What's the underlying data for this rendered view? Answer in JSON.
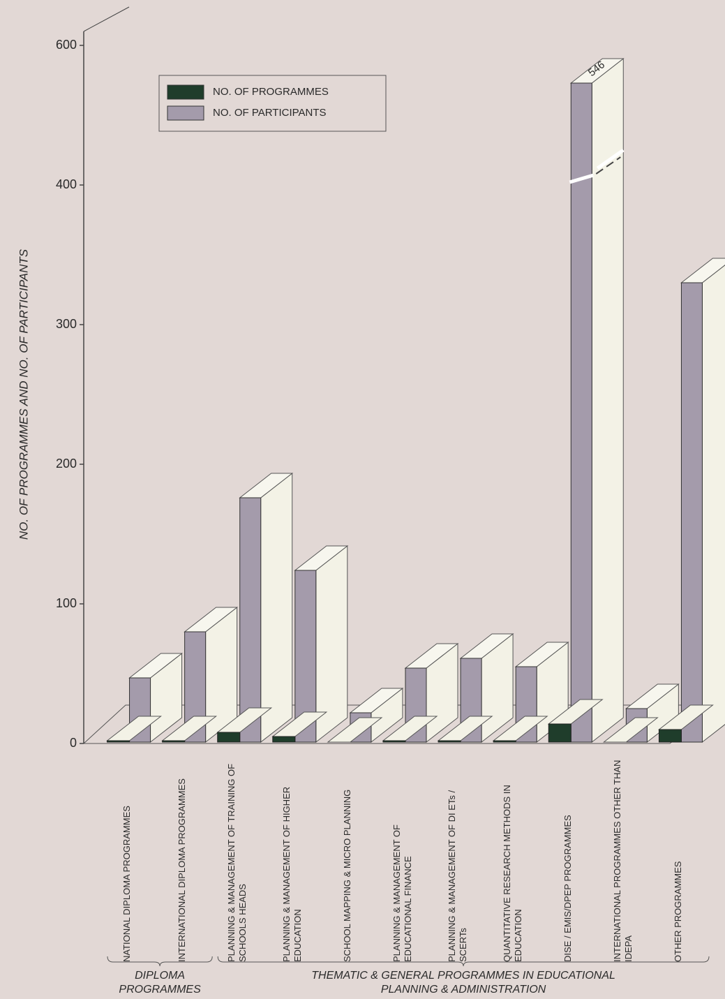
{
  "chart_data": {
    "type": "bar",
    "y_label": "NO. OF PROGRAMMES AND NO. OF PARTICIPANTS",
    "categories": [
      "NATIONAL DIPLOMA PROGRAMMES",
      "INTERNATIONAL DIPLOMA PROGRAMMES",
      "PLANNING & MANAGEMENT OF TRAINING OF SCHOOLS HEADS",
      "PLANNING & MANAGEMENT OF HIGHER EDUCATION",
      "SCHOOL MAPPING & MICRO PLANNING",
      "PLANNING & MANAGEMENT OF EDUCATIONAL FINANCE",
      "PLANNING & MANAGEMENT OF DI ETs / SCERTs",
      "QUANTITATIVE RESEARCH METHODS IN EDUCATION",
      "DISE / EMIS/DPEP PROGRAMMES",
      "INTERNATIONAL PROGRAMMES OTHER THAN IDEPA",
      "OTHER PROGRAMMES"
    ],
    "groups": [
      {
        "label": "DIPLOMA PROGRAMMES",
        "from": 0,
        "to": 1
      },
      {
        "label": "THEMATIC & GENERAL PROGRAMMES IN EDUCATIONAL PLANNING & ADMINISTRATION",
        "from": 2,
        "to": 10
      }
    ],
    "series": [
      {
        "name": "NO. OF PROGRAMMES",
        "color": "#1f3d2b",
        "values": [
          2,
          2,
          8,
          5,
          1,
          2,
          2,
          2,
          14,
          1,
          10
        ]
      },
      {
        "name": "NO. OF PARTICIPANTS",
        "color": "#a49bab",
        "values": [
          47,
          80,
          176,
          124,
          22,
          54,
          61,
          55,
          546,
          25,
          330
        ]
      }
    ],
    "ylim": [
      0,
      600
    ],
    "yticks": [
      0,
      100,
      200,
      300,
      400,
      600
    ],
    "axis_break": 400
  }
}
